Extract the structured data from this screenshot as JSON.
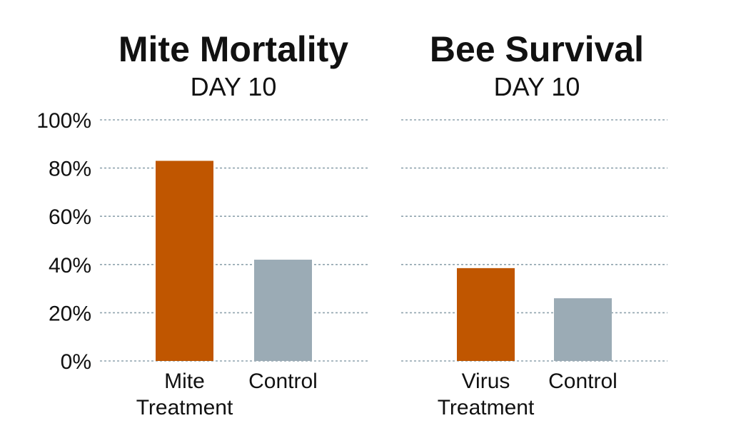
{
  "chart_data": [
    {
      "type": "bar",
      "title": "Mite Mortality",
      "subtitle": "DAY 10",
      "categories": [
        [
          "Mite",
          "Treatment"
        ],
        [
          "Control"
        ]
      ],
      "values": [
        83,
        42
      ],
      "colors": [
        "#C05600",
        "#9BABB5"
      ],
      "ylim": [
        0,
        100
      ],
      "yticks": [
        "0%",
        "20%",
        "40%",
        "60%",
        "80%",
        "100%"
      ],
      "grid": true
    },
    {
      "type": "bar",
      "title": "Bee Survival",
      "subtitle": "DAY 10",
      "categories": [
        [
          "Virus",
          "Treatment"
        ],
        [
          "Control"
        ]
      ],
      "values": [
        38.5,
        26
      ],
      "colors": [
        "#C05600",
        "#9BABB5"
      ],
      "ylim": [
        0,
        100
      ],
      "grid": true
    }
  ],
  "colors": {
    "grid": "#8FA3AE",
    "treatment": "#C05600",
    "control": "#9BABB5"
  }
}
